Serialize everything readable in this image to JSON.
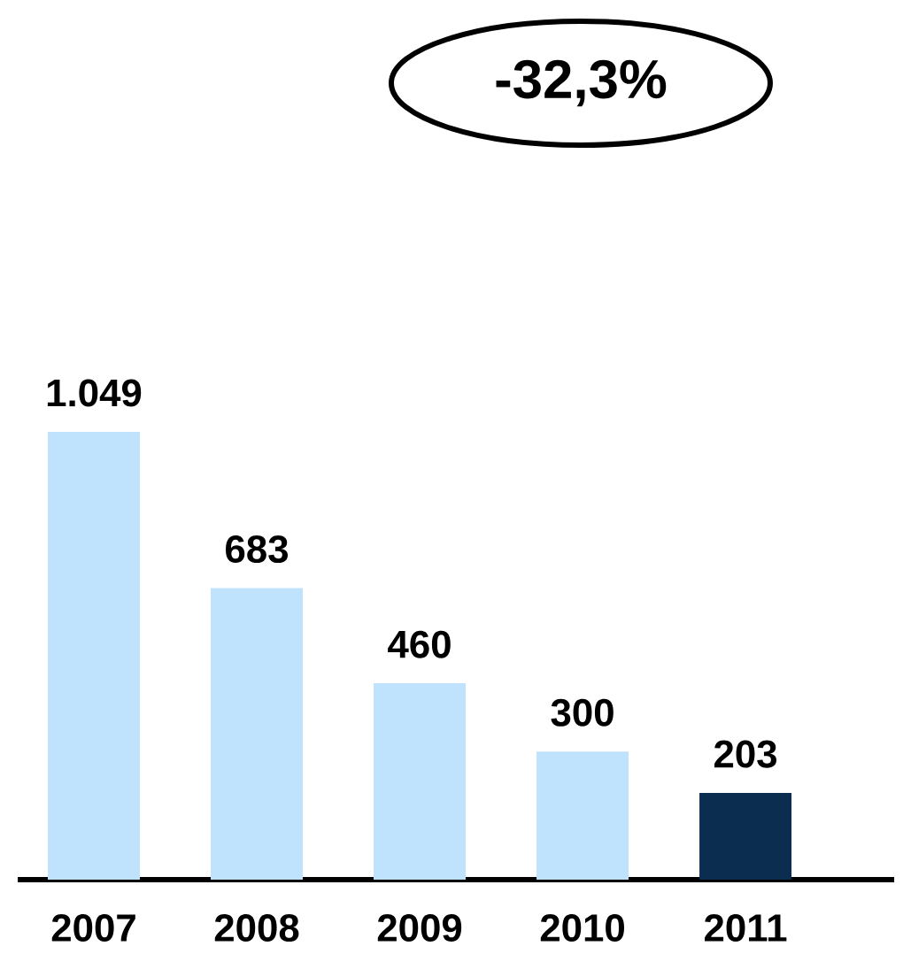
{
  "chart_data": {
    "type": "bar",
    "categories": [
      "2007",
      "2008",
      "2009",
      "2010",
      "2011"
    ],
    "values": [
      1049,
      683,
      460,
      300,
      203
    ],
    "value_labels": [
      "1.049",
      "683",
      "460",
      "300",
      "203"
    ],
    "colors": [
      "#bfe2fd",
      "#bfe2fd",
      "#bfe2fd",
      "#bfe2fd",
      "#0a2d50"
    ],
    "annotations": [
      "-32,3%"
    ]
  }
}
